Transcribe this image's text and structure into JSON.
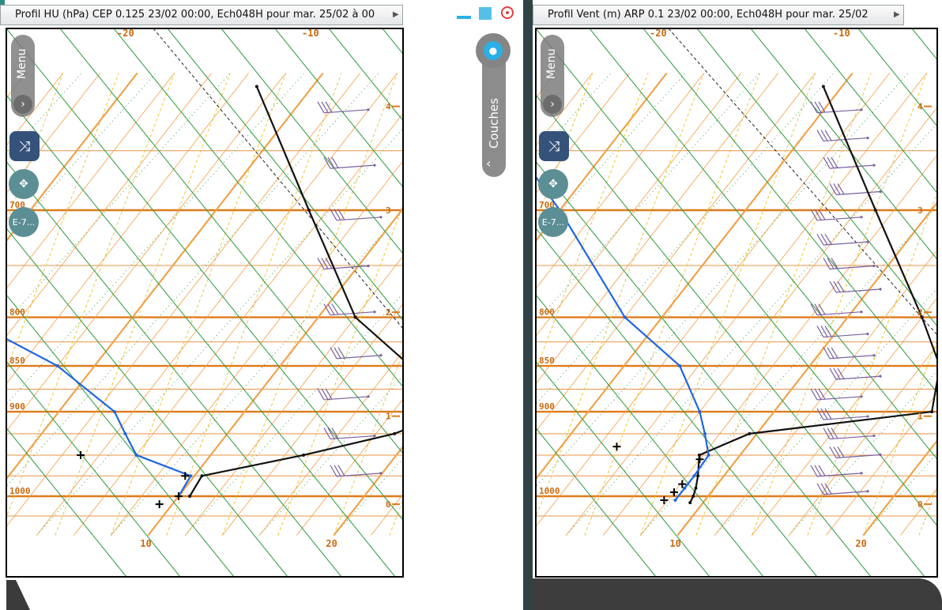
{
  "windows": [
    {
      "title": "Profil HU (hPa) CEP 0.125 23/02 00:00, Ech048H pour mar. 25/02 à 00",
      "menu_label": "Menu",
      "layers_label": "Couches",
      "badge_label": "E-7..."
    },
    {
      "title": "Profil Vent (m) ARP 0.1 23/02 00:00, Ech048H pour mar. 25/02",
      "menu_label": "Menu",
      "badge_label": "E-7..."
    }
  ],
  "chart_data": [
    {
      "type": "line",
      "title": "Profil HU (hPa) CEP 0.125 23/02 00:00, Ech048H pour mar. 25/02 à 00",
      "xlabel": "",
      "ylabel": "",
      "pressure_levels": [
        "700",
        "800",
        "850",
        "900",
        "1000"
      ],
      "altitude_ticks_km": [
        "4",
        "3",
        "2",
        "1",
        "0"
      ],
      "x_bottom_ticks": [
        "10",
        "20"
      ],
      "x_top_ticks": [
        "-20",
        "-10"
      ],
      "colors": {
        "temperature": "#111111",
        "dewpoint": "#1f66e0",
        "isobar": "#e07a1a",
        "isotherm": "#f0a34a",
        "dry_adiabat": "#3aa24a",
        "mixing_ratio": "#e8c840",
        "barb": "#7a5fa0"
      },
      "series": [
        {
          "name": "",
          "points": [
            [
              1000,
              10.6
            ],
            [
              975,
              10.4
            ],
            [
              950,
              15.0
            ],
            [
              925,
              19.0
            ],
            [
              900,
              21.0
            ],
            [
              850,
              17.0
            ],
            [
              800,
              12.0
            ],
            [
              700,
              5.0
            ],
            [
              600,
              -3.0
            ]
          ]
        },
        {
          "name": "",
          "points": [
            [
              1000,
              10.0
            ],
            [
              975,
              9.8
            ],
            [
              950,
              6.0
            ],
            [
              925,
              4.5
            ],
            [
              900,
              3.0
            ],
            [
              850,
              -2.0
            ],
            [
              800,
              -9.0
            ],
            [
              700,
              -20.0
            ],
            [
              600,
              -20.0
            ]
          ]
        }
      ],
      "markers": [
        [
          950,
          3.0
        ],
        [
          975,
          9.5
        ],
        [
          1000,
          10.0
        ],
        [
          1010,
          9.3
        ]
      ],
      "xlim": [
        0,
        21
      ],
      "pressure_range": [
        1050,
        590
      ]
    },
    {
      "type": "line",
      "title": "Profil Vent (m) ARP 0.1 23/02 00:00, Ech048H pour mar. 25/02",
      "xlabel": "",
      "ylabel": "",
      "pressure_levels": [
        "700",
        "800",
        "850",
        "900",
        "1000"
      ],
      "altitude_ticks_km": [
        "4",
        "3",
        "2",
        "1",
        "0"
      ],
      "x_bottom_ticks": [
        "10",
        "20"
      ],
      "x_top_ticks": [
        "-20",
        "-10"
      ],
      "series": [
        {
          "name": "",
          "points": [
            [
              1008,
              9.3
            ],
            [
              1000,
              9.2
            ],
            [
              990,
              9.0
            ],
            [
              975,
              8.6
            ],
            [
              950,
              7.8
            ],
            [
              925,
              9.6
            ],
            [
              900,
              18.5
            ],
            [
              850,
              17.0
            ],
            [
              800,
              14.0
            ],
            [
              700,
              7.0
            ],
            [
              600,
              -1.0
            ]
          ]
        },
        {
          "name": "",
          "points": [
            [
              1005,
              8.4
            ],
            [
              990,
              8.4
            ],
            [
              975,
              8.4
            ],
            [
              950,
              8.3
            ],
            [
              925,
              7.2
            ],
            [
              900,
              6.0
            ],
            [
              850,
              3.0
            ],
            [
              800,
              -2.0
            ],
            [
              700,
              -10.0
            ],
            [
              600,
              -20.0
            ]
          ]
        }
      ],
      "markers": [
        [
          940,
          3.0
        ],
        [
          955,
          8.0
        ],
        [
          985,
          8.1
        ],
        [
          995,
          8.0
        ],
        [
          1005,
          7.8
        ]
      ],
      "xlim": [
        0,
        21
      ],
      "pressure_range": [
        1050,
        590
      ]
    }
  ]
}
